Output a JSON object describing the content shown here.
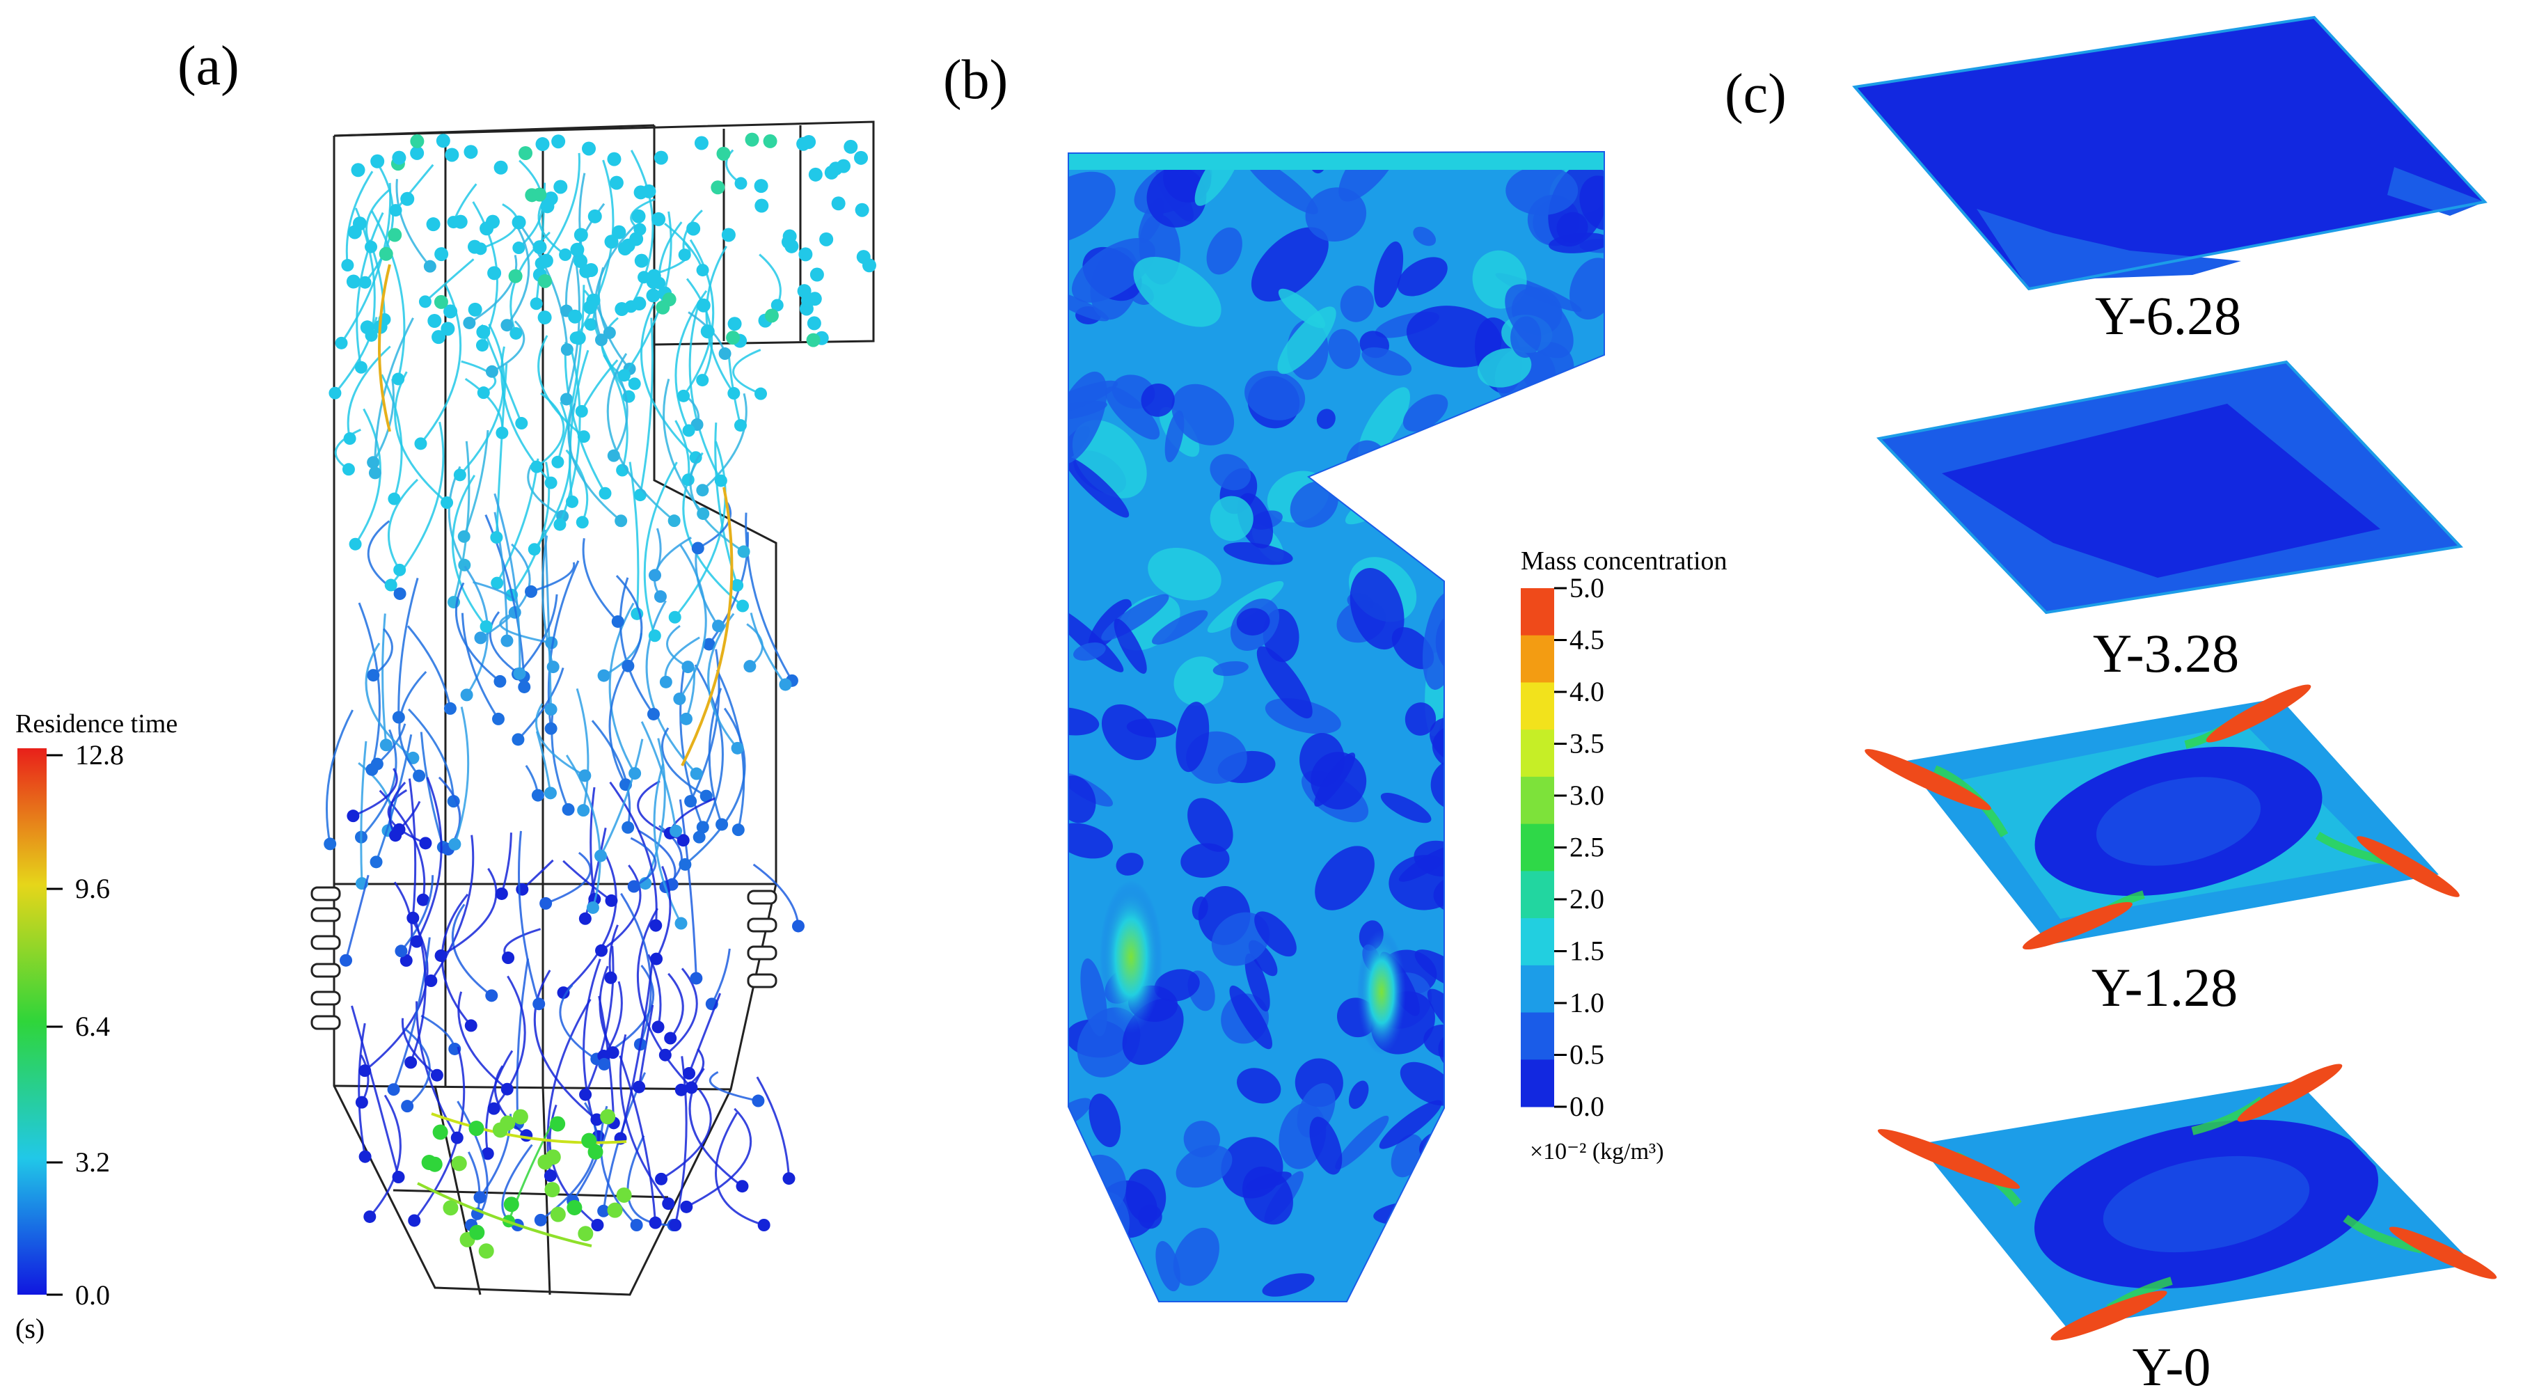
{
  "panels": {
    "a": {
      "label": "(a)",
      "legend": {
        "title": "Residence time",
        "unit": "(s)",
        "ticks": [
          "12.8",
          "9.6",
          "6.4",
          "3.2",
          "0.0"
        ],
        "colors": [
          "#e8201a",
          "#e6d61a",
          "#2fd53a",
          "#21c8e8",
          "#1016e0"
        ]
      }
    },
    "b": {
      "label": "(b)",
      "legend": {
        "title": "Mass concentration",
        "unit": "×10⁻² (kg/m³)",
        "ticks": [
          "5.0",
          "4.5",
          "4.0",
          "3.5",
          "3.0",
          "2.5",
          "2.0",
          "1.5",
          "1.0",
          "0.5",
          "0.0"
        ],
        "bands": [
          "#ef4a1a",
          "#f39c12",
          "#f2e21c",
          "#c6ee26",
          "#7de23a",
          "#2fd848",
          "#22d6a0",
          "#22cfe0",
          "#1c9de8",
          "#1a5ce8",
          "#1228e0"
        ]
      }
    },
    "c": {
      "label": "(c)",
      "slices": [
        "Y-6.28",
        "Y-3.28",
        "Y-1.28",
        "Y-0"
      ]
    }
  }
}
